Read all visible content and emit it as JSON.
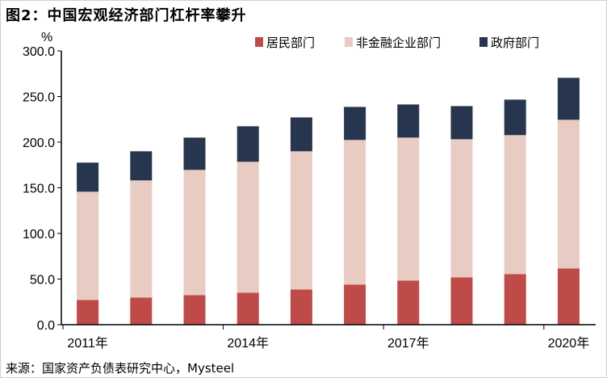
{
  "title": "图2：中国宏观经济部门杠杆率攀升",
  "source": "来源：国家资产负债表研究中心，Mysteel",
  "chart_data": {
    "type": "bar",
    "stacked": true,
    "categories": [
      "2011年",
      "2012年",
      "2013年",
      "2014年",
      "2015年",
      "2016年",
      "2017年",
      "2018年",
      "2019年",
      "2020年"
    ],
    "x_tick_labels": [
      "2011年",
      "2014年",
      "2017年",
      "2020年"
    ],
    "ylabel": "%",
    "ylim": [
      0,
      300
    ],
    "y_ticks": [
      "0.0",
      "50.0",
      "100.0",
      "150.0",
      "200.0",
      "250.0",
      "300.0"
    ],
    "grid": false,
    "legend_position": "top-right",
    "series": [
      {
        "name": "居民部门",
        "color": "#be4b48",
        "values": [
          27.1,
          29.8,
          32.4,
          35.1,
          38.6,
          44.0,
          48.4,
          51.9,
          55.5,
          61.7
        ]
      },
      {
        "name": "非金融企业部门",
        "color": "#e8cbc3",
        "values": [
          118.6,
          128.3,
          137.2,
          143.4,
          151.4,
          158.4,
          156.6,
          151.3,
          152.2,
          162.8
        ]
      },
      {
        "name": "政府部门",
        "color": "#27354f",
        "values": [
          31.9,
          31.9,
          35.4,
          38.9,
          37.1,
          36.2,
          36.3,
          36.3,
          38.9,
          46.0
        ]
      }
    ]
  }
}
